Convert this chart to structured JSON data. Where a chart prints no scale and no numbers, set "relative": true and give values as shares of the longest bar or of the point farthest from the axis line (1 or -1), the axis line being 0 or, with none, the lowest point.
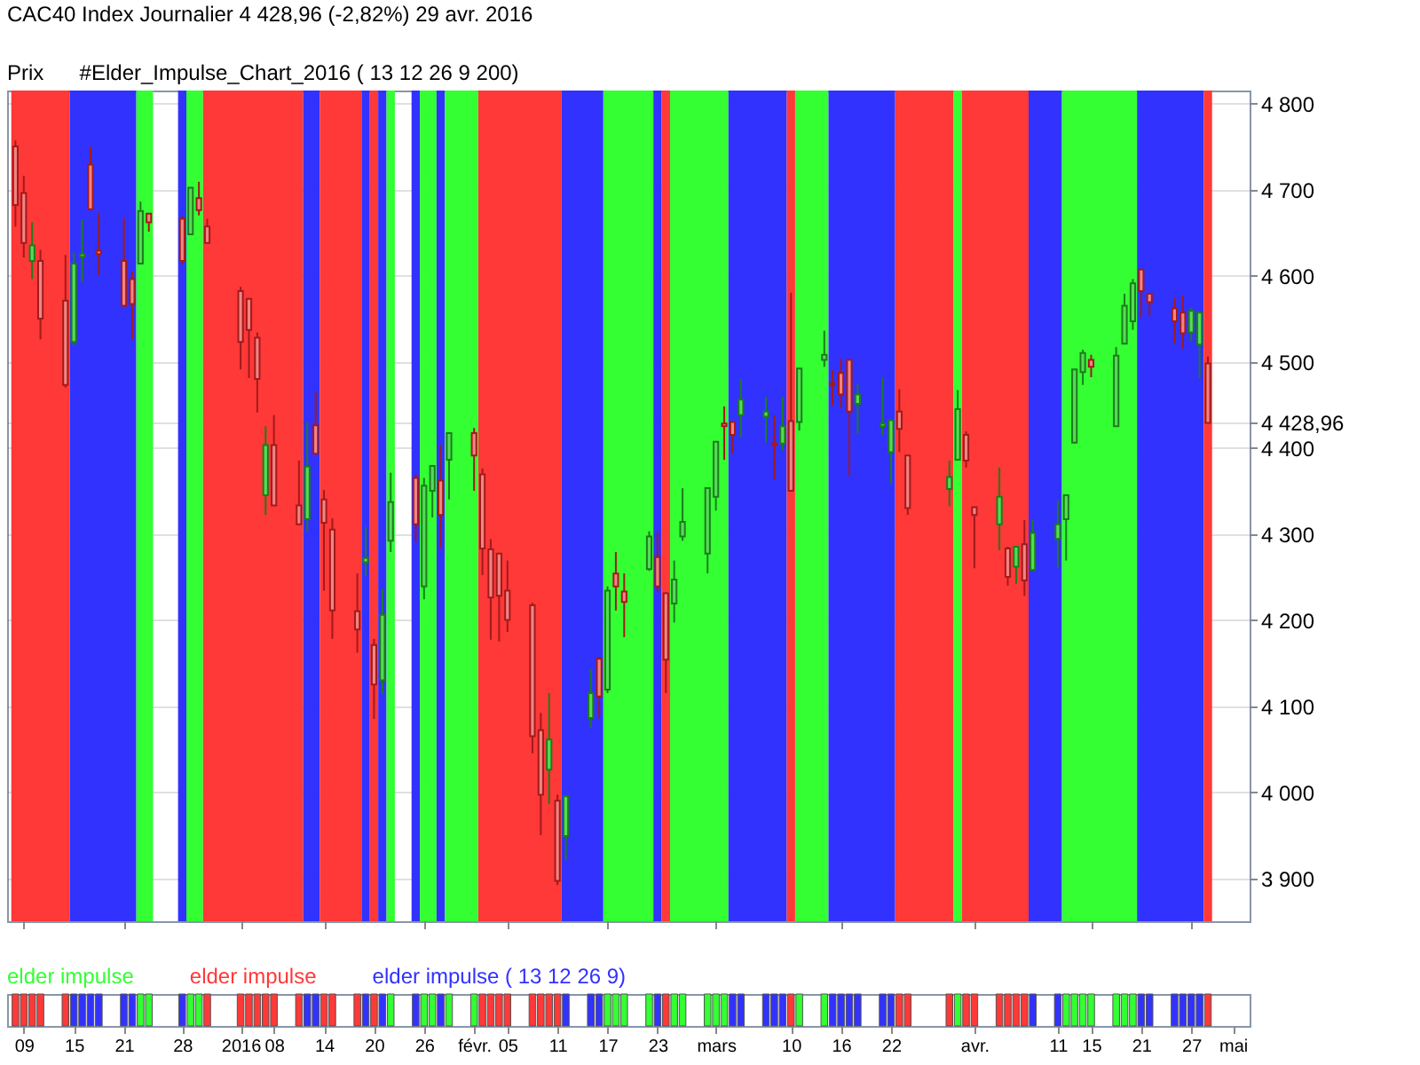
{
  "chart_data": [
    {
      "type": "candlestick",
      "title": "CAC40 Index   Journalier   4 428,96 (-2,82%)   29 avr. 2016",
      "annotations": [
        "Prix",
        "#Elder_Impulse_Chart_2016 ( 13 12 26 9 200)"
      ],
      "x": [
        "2015-12-08",
        "2015-12-09",
        "2015-12-10",
        "2015-12-11",
        "2015-12-14",
        "2015-12-15",
        "2015-12-16",
        "2015-12-17",
        "2015-12-18",
        "2015-12-21",
        "2015-12-22",
        "2015-12-23",
        "2015-12-24",
        "2015-12-28",
        "2015-12-29",
        "2015-12-30",
        "2015-12-31",
        "2016-01-04",
        "2016-01-05",
        "2016-01-06",
        "2016-01-07",
        "2016-01-08",
        "2016-01-11",
        "2016-01-12",
        "2016-01-13",
        "2016-01-14",
        "2016-01-15",
        "2016-01-18",
        "2016-01-19",
        "2016-01-20",
        "2016-01-21",
        "2016-01-22",
        "2016-01-25",
        "2016-01-26",
        "2016-01-27",
        "2016-01-28",
        "2016-01-29",
        "2016-02-01",
        "2016-02-02",
        "2016-02-03",
        "2016-02-04",
        "2016-02-05",
        "2016-02-08",
        "2016-02-09",
        "2016-02-10",
        "2016-02-11",
        "2016-02-12",
        "2016-02-15",
        "2016-02-16",
        "2016-02-17",
        "2016-02-18",
        "2016-02-19",
        "2016-02-22",
        "2016-02-23",
        "2016-02-24",
        "2016-02-25",
        "2016-02-26",
        "2016-02-29",
        "2016-03-01",
        "2016-03-02",
        "2016-03-03",
        "2016-03-04",
        "2016-03-07",
        "2016-03-08",
        "2016-03-09",
        "2016-03-10",
        "2016-03-11",
        "2016-03-14",
        "2016-03-15",
        "2016-03-16",
        "2016-03-17",
        "2016-03-18",
        "2016-03-21",
        "2016-03-22",
        "2016-03-23",
        "2016-03-24",
        "2016-03-29",
        "2016-03-30",
        "2016-03-31",
        "2016-04-01",
        "2016-04-04",
        "2016-04-05",
        "2016-04-06",
        "2016-04-07",
        "2016-04-08",
        "2016-04-11",
        "2016-04-12",
        "2016-04-13",
        "2016-04-14",
        "2016-04-15",
        "2016-04-18",
        "2016-04-19",
        "2016-04-20",
        "2016-04-21",
        "2016-04-22",
        "2016-04-25",
        "2016-04-26",
        "2016-04-27",
        "2016-04-28",
        "2016-04-29"
      ],
      "ohlc": [
        [
          4750,
          4757,
          4657,
          4682
        ],
        [
          4696,
          4716,
          4621,
          4638
        ],
        [
          4617,
          4662,
          4596,
          4635
        ],
        [
          4617,
          4630,
          4526,
          4550
        ],
        [
          4571,
          4624,
          4470,
          4473
        ],
        [
          4523,
          4627,
          4519,
          4614
        ],
        [
          4622,
          4665,
          4593,
          4625
        ],
        [
          4729,
          4750,
          4677,
          4677
        ],
        [
          4629,
          4672,
          4601,
          4625
        ],
        [
          4617,
          4667,
          4565,
          4565
        ],
        [
          4596,
          4605,
          4526,
          4567
        ],
        [
          4614,
          4686,
          4614,
          4675
        ],
        [
          4672,
          4672,
          4651,
          4662
        ],
        [
          4666,
          4669,
          4613,
          4617
        ],
        [
          4648,
          4702,
          4648,
          4702
        ],
        [
          4690,
          4709,
          4670,
          4676
        ],
        [
          4657,
          4666,
          4638,
          4638
        ],
        [
          4582,
          4587,
          4491,
          4523
        ],
        [
          4573,
          4574,
          4481,
          4537
        ],
        [
          4528,
          4534,
          4441,
          4480
        ],
        [
          4345,
          4425,
          4322,
          4403
        ],
        [
          4403,
          4438,
          4333,
          4333
        ],
        [
          4333,
          4385,
          4311,
          4311
        ],
        [
          4317,
          4430,
          4303,
          4378
        ],
        [
          4426,
          4465,
          4393,
          4393
        ],
        [
          4340,
          4351,
          4234,
          4313
        ],
        [
          4305,
          4318,
          4178,
          4211
        ],
        [
          4210,
          4254,
          4162,
          4189
        ],
        [
          4267,
          4308,
          4251,
          4272
        ],
        [
          4171,
          4178,
          4085,
          4125
        ],
        [
          4130,
          4236,
          4114,
          4206
        ],
        [
          4292,
          4371,
          4279,
          4337
        ],
        [
          4365,
          4369,
          4291,
          4311
        ],
        [
          4239,
          4365,
          4224,
          4356
        ],
        [
          4350,
          4380,
          4319,
          4379
        ],
        [
          4362,
          4403,
          4283,
          4322
        ],
        [
          4386,
          4418,
          4340,
          4417
        ],
        [
          4417,
          4423,
          4350,
          4391
        ],
        [
          4369,
          4376,
          4252,
          4283
        ],
        [
          4282,
          4294,
          4177,
          4226
        ],
        [
          4277,
          4277,
          4175,
          4228
        ],
        [
          4234,
          4269,
          4186,
          4200
        ],
        [
          4217,
          4220,
          4045,
          4065
        ],
        [
          4072,
          4092,
          3950,
          3997
        ],
        [
          4026,
          4115,
          3986,
          4061
        ],
        [
          3990,
          3997,
          3892,
          3897
        ],
        [
          3949,
          3995,
          3921,
          3995
        ],
        [
          4086,
          4143,
          4075,
          4115
        ],
        [
          4155,
          4157,
          4086,
          4111
        ],
        [
          4119,
          4239,
          4115,
          4234
        ],
        [
          4254,
          4279,
          4211,
          4239
        ],
        [
          4233,
          4254,
          4180,
          4221
        ],
        [
          4259,
          4303,
          4257,
          4297
        ],
        [
          4273,
          4302,
          4232,
          4239
        ],
        [
          4231,
          4232,
          4115,
          4154
        ],
        [
          4219,
          4269,
          4197,
          4247
        ],
        [
          4297,
          4353,
          4292,
          4314
        ],
        [
          4277,
          4354,
          4254,
          4353
        ],
        [
          4343,
          4407,
          4327,
          4407
        ],
        [
          4428,
          4448,
          4386,
          4425
        ],
        [
          4430,
          4430,
          4393,
          4415
        ],
        [
          4438,
          4480,
          4412,
          4456
        ],
        [
          4436,
          4459,
          4406,
          4442
        ],
        [
          4405,
          4438,
          4363,
          4403
        ],
        [
          4405,
          4459,
          4397,
          4425
        ],
        [
          4431,
          4580,
          4350,
          4350
        ],
        [
          4430,
          4492,
          4420,
          4492
        ],
        [
          4502,
          4536,
          4494,
          4508
        ],
        [
          4475,
          4490,
          4449,
          4473
        ],
        [
          4487,
          4504,
          4446,
          4462
        ],
        [
          4502,
          4502,
          4367,
          4442
        ],
        [
          4451,
          4474,
          4417,
          4462
        ],
        [
          4425,
          4481,
          4415,
          4428
        ],
        [
          4395,
          4432,
          4358,
          4432
        ],
        [
          4442,
          4468,
          4395,
          4422
        ],
        [
          4391,
          4391,
          4322,
          4330
        ],
        [
          4352,
          4385,
          4332,
          4366
        ],
        [
          4386,
          4467,
          4386,
          4445
        ],
        [
          4415,
          4419,
          4377,
          4385
        ],
        [
          4331,
          4331,
          4260,
          4322
        ],
        [
          4311,
          4377,
          4281,
          4343
        ],
        [
          4283,
          4285,
          4240,
          4250
        ],
        [
          4262,
          4285,
          4242,
          4285
        ],
        [
          4288,
          4316,
          4228,
          4246
        ],
        [
          4258,
          4316,
          4258,
          4301
        ],
        [
          4294,
          4339,
          4261,
          4311
        ],
        [
          4317,
          4346,
          4269,
          4345
        ],
        [
          4406,
          4491,
          4405,
          4491
        ],
        [
          4488,
          4514,
          4473,
          4510
        ],
        [
          4502,
          4508,
          4482,
          4494
        ],
        [
          4425,
          4517,
          4425,
          4507
        ],
        [
          4521,
          4579,
          4521,
          4565
        ],
        [
          4547,
          4596,
          4537,
          4591
        ],
        [
          4607,
          4607,
          4551,
          4582
        ],
        [
          4579,
          4579,
          4553,
          4569
        ],
        [
          4562,
          4574,
          4521,
          4547
        ],
        [
          4557,
          4577,
          4515,
          4533
        ],
        [
          4534,
          4563,
          4524,
          4559
        ],
        [
          4520,
          4557,
          4481,
          4557
        ],
        [
          4498,
          4506,
          4428.96,
          4428.96
        ]
      ],
      "bands": [
        {
          "axis": "x",
          "from": "2015-12-07T12:00",
          "to": "2015-12-14T12:00",
          "color": "#ff3838"
        },
        {
          "axis": "x",
          "from": "2015-12-14T12:00",
          "to": "2015-12-22T12:00",
          "color": "#3232ff"
        },
        {
          "axis": "x",
          "from": "2015-12-22T12:00",
          "to": "2015-12-24T12:00",
          "color": "#33ff33"
        },
        {
          "axis": "x",
          "from": "2015-12-27T12:00",
          "to": "2015-12-28T12:00",
          "color": "#3232ff"
        },
        {
          "axis": "x",
          "from": "2015-12-28T12:00",
          "to": "2015-12-30T12:00",
          "color": "#33ff33"
        },
        {
          "axis": "x",
          "from": "2015-12-30T12:00",
          "to": "2016-01-11T12:00",
          "color": "#ff3838"
        },
        {
          "axis": "x",
          "from": "2016-01-11T12:00",
          "to": "2016-01-13T12:00",
          "color": "#3232ff"
        },
        {
          "axis": "x",
          "from": "2016-01-13T12:00",
          "to": "2016-01-18T12:00",
          "color": "#ff3838"
        },
        {
          "axis": "x",
          "from": "2016-01-18T12:00",
          "to": "2016-01-19T12:00",
          "color": "#3232ff"
        },
        {
          "axis": "x",
          "from": "2016-01-19T12:00",
          "to": "2016-01-20T12:00",
          "color": "#ff3838"
        },
        {
          "axis": "x",
          "from": "2016-01-20T12:00",
          "to": "2016-01-21T12:00",
          "color": "#3232ff"
        },
        {
          "axis": "x",
          "from": "2016-01-21T12:00",
          "to": "2016-01-22T12:00",
          "color": "#33ff33"
        },
        {
          "axis": "x",
          "from": "2016-01-24T12:00",
          "to": "2016-01-25T12:00",
          "color": "#3232ff"
        },
        {
          "axis": "x",
          "from": "2016-01-25T12:00",
          "to": "2016-01-27T12:00",
          "color": "#33ff33"
        },
        {
          "axis": "x",
          "from": "2016-01-27T12:00",
          "to": "2016-01-28T12:00",
          "color": "#3232ff"
        },
        {
          "axis": "x",
          "from": "2016-01-28T12:00",
          "to": "2016-02-01T12:00",
          "color": "#33ff33"
        },
        {
          "axis": "x",
          "from": "2016-02-01T12:00",
          "to": "2016-02-11T12:00",
          "color": "#ff3838"
        },
        {
          "axis": "x",
          "from": "2016-02-11T12:00",
          "to": "2016-02-16T12:00",
          "color": "#3232ff"
        },
        {
          "axis": "x",
          "from": "2016-02-16T12:00",
          "to": "2016-02-22T12:00",
          "color": "#33ff33"
        },
        {
          "axis": "x",
          "from": "2016-02-22T12:00",
          "to": "2016-02-23T12:00",
          "color": "#3232ff"
        },
        {
          "axis": "x",
          "from": "2016-02-23T12:00",
          "to": "2016-02-24T12:00",
          "color": "#ff3838"
        },
        {
          "axis": "x",
          "from": "2016-02-24T12:00",
          "to": "2016-03-02T12:00",
          "color": "#33ff33"
        },
        {
          "axis": "x",
          "from": "2016-03-02T12:00",
          "to": "2016-03-09T12:00",
          "color": "#3232ff"
        },
        {
          "axis": "x",
          "from": "2016-03-09T12:00",
          "to": "2016-03-10T12:00",
          "color": "#ff3838"
        },
        {
          "axis": "x",
          "from": "2016-03-10T12:00",
          "to": "2016-03-14T12:00",
          "color": "#33ff33"
        },
        {
          "axis": "x",
          "from": "2016-03-14T12:00",
          "to": "2016-03-22T12:00",
          "color": "#3232ff"
        },
        {
          "axis": "x",
          "from": "2016-03-22T12:00",
          "to": "2016-03-29T12:00",
          "color": "#ff3838"
        },
        {
          "axis": "x",
          "from": "2016-03-29T12:00",
          "to": "2016-03-30T12:00",
          "color": "#33ff33"
        },
        {
          "axis": "x",
          "from": "2016-03-30T12:00",
          "to": "2016-04-07T12:00",
          "color": "#ff3838"
        },
        {
          "axis": "x",
          "from": "2016-04-07T12:00",
          "to": "2016-04-11T12:00",
          "color": "#3232ff"
        },
        {
          "axis": "x",
          "from": "2016-04-11T12:00",
          "to": "2016-04-20T12:00",
          "color": "#33ff33"
        },
        {
          "axis": "x",
          "from": "2016-04-20T12:00",
          "to": "2016-04-28T12:00",
          "color": "#3232ff"
        },
        {
          "axis": "x",
          "from": "2016-04-28T12:00",
          "to": "2016-04-29T12:00",
          "color": "#ff3838"
        }
      ],
      "xlim": [
        "2015-12-07",
        "2016-05-04"
      ],
      "xticks": [
        "2015-12-09",
        "2015-12-15",
        "2015-12-21",
        "2015-12-28",
        "2016-01-04",
        "2016-01-08",
        "2016-01-14",
        "2016-01-20",
        "2016-01-26",
        "2016-02-01",
        "2016-02-05",
        "2016-02-11",
        "2016-02-17",
        "2016-02-23",
        "2016-03-01",
        "2016-03-10",
        "2016-03-16",
        "2016-03-22",
        "2016-04-01",
        "2016-04-11",
        "2016-04-15",
        "2016-04-21",
        "2016-04-27",
        "2016-05-02"
      ],
      "ylim": [
        3850,
        4815
      ],
      "yticks": [
        {
          "value": 3900,
          "label": "3 900"
        },
        {
          "value": 4000,
          "label": "4 000"
        },
        {
          "value": 4100,
          "label": "4 100"
        },
        {
          "value": 4200,
          "label": "4 200"
        },
        {
          "value": 4300,
          "label": "4 300"
        },
        {
          "value": 4400,
          "label": "4 400"
        },
        {
          "value": 4428.96,
          "label": "4 428,96"
        },
        {
          "value": 4500,
          "label": "4 500"
        },
        {
          "value": 4600,
          "label": "4 600"
        },
        {
          "value": 4700,
          "label": "4 700"
        },
        {
          "value": 4800,
          "label": "4 800"
        }
      ],
      "grid": true,
      "tick_labels": "y"
    },
    {
      "type": "bar",
      "relative": true,
      "legend": "top left",
      "x": [
        "2015-12-08",
        "2015-12-09",
        "2015-12-10",
        "2015-12-11",
        "2015-12-14",
        "2015-12-15",
        "2015-12-16",
        "2015-12-17",
        "2015-12-18",
        "2015-12-21",
        "2015-12-22",
        "2015-12-23",
        "2015-12-24",
        "2015-12-28",
        "2015-12-29",
        "2015-12-30",
        "2015-12-31",
        "2016-01-04",
        "2016-01-05",
        "2016-01-06",
        "2016-01-07",
        "2016-01-08",
        "2016-01-11",
        "2016-01-12",
        "2016-01-13",
        "2016-01-14",
        "2016-01-15",
        "2016-01-18",
        "2016-01-19",
        "2016-01-20",
        "2016-01-21",
        "2016-01-22",
        "2016-01-25",
        "2016-01-26",
        "2016-01-27",
        "2016-01-28",
        "2016-01-29",
        "2016-02-01",
        "2016-02-02",
        "2016-02-03",
        "2016-02-04",
        "2016-02-05",
        "2016-02-08",
        "2016-02-09",
        "2016-02-10",
        "2016-02-11",
        "2016-02-12",
        "2016-02-15",
        "2016-02-16",
        "2016-02-17",
        "2016-02-18",
        "2016-02-19",
        "2016-02-22",
        "2016-02-23",
        "2016-02-24",
        "2016-02-25",
        "2016-02-26",
        "2016-02-29",
        "2016-03-01",
        "2016-03-02",
        "2016-03-03",
        "2016-03-04",
        "2016-03-07",
        "2016-03-08",
        "2016-03-09",
        "2016-03-10",
        "2016-03-11",
        "2016-03-14",
        "2016-03-15",
        "2016-03-16",
        "2016-03-17",
        "2016-03-18",
        "2016-03-21",
        "2016-03-22",
        "2016-03-23",
        "2016-03-24",
        "2016-03-29",
        "2016-03-30",
        "2016-03-31",
        "2016-04-01",
        "2016-04-04",
        "2016-04-05",
        "2016-04-06",
        "2016-04-07",
        "2016-04-08",
        "2016-04-11",
        "2016-04-12",
        "2016-04-13",
        "2016-04-14",
        "2016-04-15",
        "2016-04-18",
        "2016-04-19",
        "2016-04-20",
        "2016-04-21",
        "2016-04-22",
        "2016-04-25",
        "2016-04-26",
        "2016-04-27",
        "2016-04-28",
        "2016-04-29"
      ],
      "xlim": [
        "2015-12-07",
        "2016-05-04"
      ],
      "xticks": [
        {
          "value": "2015-12-09",
          "label": "09"
        },
        {
          "value": "2015-12-15",
          "label": "15"
        },
        {
          "value": "2015-12-21",
          "label": "21"
        },
        {
          "value": "2015-12-28",
          "label": "28"
        },
        {
          "value": "2016-01-04",
          "label": "2016"
        },
        {
          "value": "2016-01-08",
          "label": "08"
        },
        {
          "value": "2016-01-14",
          "label": "14"
        },
        {
          "value": "2016-01-20",
          "label": "20"
        },
        {
          "value": "2016-01-26",
          "label": "26"
        },
        {
          "value": "2016-02-01",
          "label": "févr."
        },
        {
          "value": "2016-02-05",
          "label": "05"
        },
        {
          "value": "2016-02-11",
          "label": "11"
        },
        {
          "value": "2016-02-17",
          "label": "17"
        },
        {
          "value": "2016-02-23",
          "label": "23"
        },
        {
          "value": "2016-03-01",
          "label": "mars"
        },
        {
          "value": "2016-03-10",
          "label": "10"
        },
        {
          "value": "2016-03-16",
          "label": "16"
        },
        {
          "value": "2016-03-22",
          "label": "22"
        },
        {
          "value": "2016-04-01",
          "label": "avr."
        },
        {
          "value": "2016-04-11",
          "label": "11"
        },
        {
          "value": "2016-04-15",
          "label": "15"
        },
        {
          "value": "2016-04-21",
          "label": "21"
        },
        {
          "value": "2016-04-27",
          "label": "27"
        },
        {
          "value": "2016-05-02",
          "label": "mai"
        }
      ],
      "series": [
        {
          "name": "elder impulse",
          "color": "#33ff33",
          "values": [
            null,
            null,
            null,
            null,
            null,
            null,
            null,
            null,
            null,
            null,
            null,
            1,
            1,
            null,
            1,
            1,
            null,
            null,
            null,
            null,
            null,
            null,
            null,
            null,
            null,
            null,
            null,
            null,
            null,
            null,
            null,
            1,
            null,
            1,
            1,
            null,
            1,
            1,
            null,
            null,
            null,
            null,
            null,
            null,
            null,
            null,
            null,
            null,
            null,
            1,
            1,
            1,
            1,
            null,
            null,
            1,
            1,
            1,
            1,
            1,
            null,
            null,
            null,
            null,
            null,
            null,
            1,
            1,
            null,
            null,
            null,
            null,
            null,
            null,
            null,
            null,
            null,
            1,
            null,
            null,
            null,
            null,
            null,
            null,
            null,
            null,
            1,
            1,
            1,
            1,
            1,
            1,
            1,
            null,
            null,
            null,
            null,
            null,
            null,
            null
          ]
        },
        {
          "name": "elder impulse",
          "color": "#ff3838",
          "values": [
            1,
            1,
            1,
            1,
            1,
            null,
            null,
            null,
            null,
            null,
            null,
            null,
            null,
            null,
            null,
            null,
            1,
            1,
            1,
            1,
            1,
            1,
            1,
            null,
            null,
            1,
            1,
            1,
            null,
            1,
            null,
            null,
            null,
            null,
            null,
            null,
            null,
            null,
            1,
            1,
            1,
            1,
            1,
            1,
            1,
            1,
            null,
            null,
            null,
            null,
            null,
            null,
            null,
            null,
            1,
            null,
            null,
            null,
            null,
            null,
            null,
            null,
            null,
            null,
            null,
            1,
            null,
            null,
            null,
            null,
            null,
            null,
            null,
            null,
            1,
            1,
            1,
            null,
            1,
            1,
            1,
            1,
            1,
            1,
            null,
            null,
            null,
            null,
            null,
            null,
            null,
            null,
            null,
            null,
            null,
            null,
            null,
            null,
            null,
            1
          ]
        },
        {
          "name": "elder impulse ( 13 12 26 9)",
          "color": "#3232ff",
          "values": [
            null,
            null,
            null,
            null,
            null,
            1,
            1,
            1,
            1,
            1,
            1,
            null,
            null,
            1,
            null,
            null,
            null,
            null,
            null,
            null,
            null,
            null,
            null,
            1,
            1,
            null,
            null,
            null,
            1,
            null,
            1,
            null,
            1,
            null,
            null,
            1,
            null,
            null,
            null,
            null,
            null,
            null,
            null,
            null,
            null,
            null,
            1,
            1,
            1,
            null,
            null,
            null,
            null,
            1,
            null,
            null,
            null,
            null,
            null,
            null,
            1,
            1,
            1,
            1,
            1,
            null,
            null,
            null,
            1,
            1,
            1,
            1,
            1,
            1,
            null,
            null,
            null,
            null,
            null,
            null,
            null,
            null,
            null,
            null,
            1,
            1,
            null,
            null,
            null,
            null,
            null,
            null,
            null,
            1,
            1,
            1,
            1,
            1,
            1,
            null
          ]
        }
      ]
    }
  ]
}
